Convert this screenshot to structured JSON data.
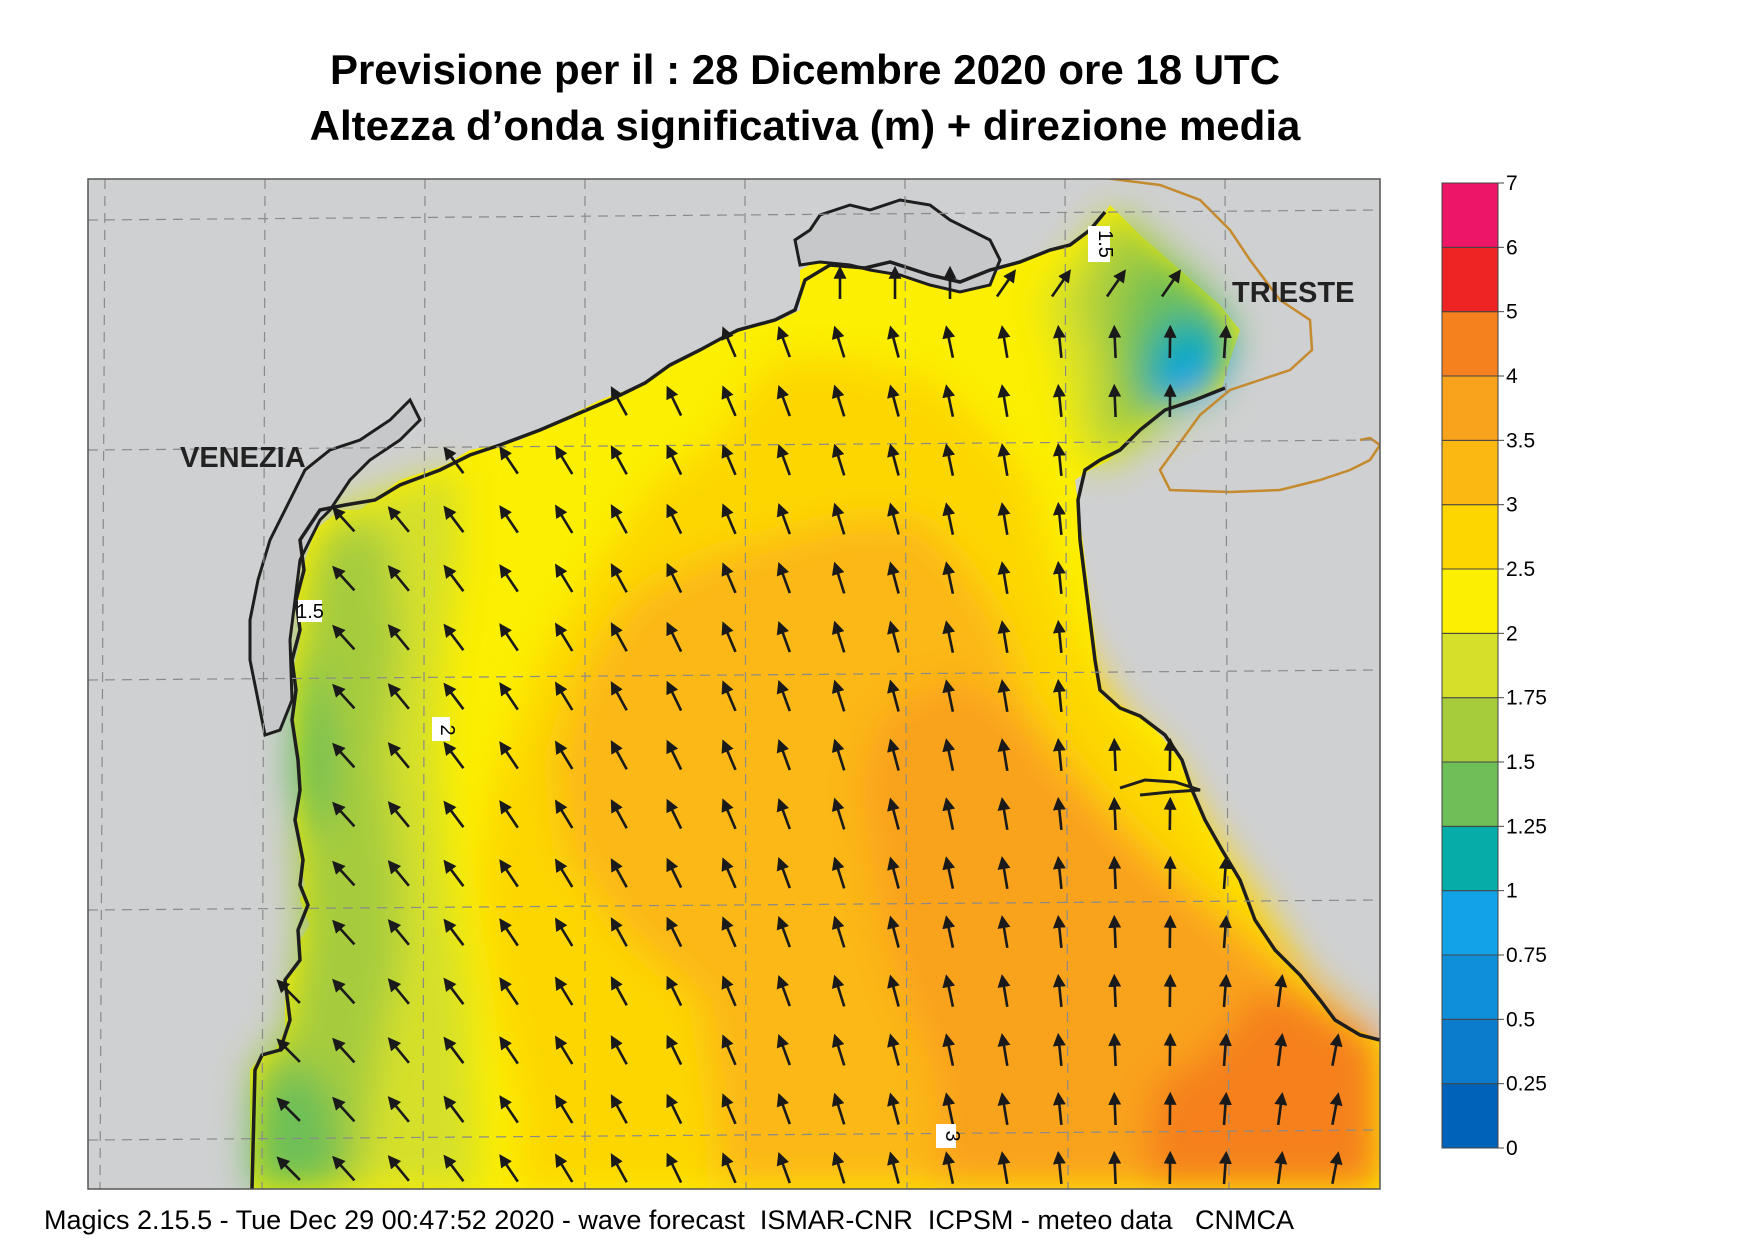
{
  "title": {
    "line1": "Previsione per il  :  28 Dicembre  2020   ore 18 UTC",
    "line2": "Altezza d’onda significativa (m) + direzione media"
  },
  "cities": {
    "venezia": "VENEZIA",
    "trieste": "TRIESTE"
  },
  "contour_labels": {
    "c15_north": "1.5",
    "c15_west": "1.5",
    "c2": "2",
    "c3": "3"
  },
  "legend": {
    "labels": [
      "0",
      "0.25",
      "0.5",
      "0.75",
      "1",
      "1.25",
      "1.5",
      "1.75",
      "2",
      "2.5",
      "3",
      "3.5",
      "4",
      "5",
      "6",
      "7"
    ],
    "colors": [
      "#0063b9",
      "#0b7ccc",
      "#0f8fd8",
      "#12a3e6",
      "#06ada8",
      "#6ebf57",
      "#a6cc3c",
      "#d6e02a",
      "#fcef00",
      "#fdd600",
      "#fcb812",
      "#f9a21b",
      "#f5801e",
      "#ee2424",
      "#ec1566"
    ]
  },
  "colors": {
    "land": "#cfd0d2",
    "coast": "#1e1e1e",
    "border": "#c58a2e",
    "arrow": "#1a1a1a"
  },
  "footer": "Magics 2.15.5 - Tue Dec 29 00:47:52 2020 - wave forecast  ISMAR-CNR  ICPSM - meteo data   CNMCA"
}
